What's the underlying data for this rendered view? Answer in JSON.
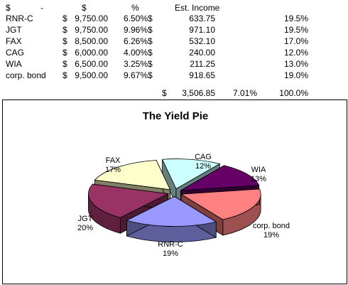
{
  "table": {
    "header": {
      "name": "$",
      "dash": "-",
      "amount": "$",
      "pct": "%",
      "income": "Est. Income"
    },
    "rows": [
      {
        "name": "RNR-C",
        "cur": "$",
        "amount": "9,750.00",
        "pct": "6.50%",
        "cur2": "$",
        "income": "633.75",
        "share": "19.5%"
      },
      {
        "name": "JGT",
        "cur": "$",
        "amount": "9,750.00",
        "pct": "9.96%",
        "cur2": "$",
        "income": "971.10",
        "share": "19.5%"
      },
      {
        "name": "FAX",
        "cur": "$",
        "amount": "8,500.00",
        "pct": "6.26%",
        "cur2": "$",
        "income": "532.10",
        "share": "17.0%"
      },
      {
        "name": "CAG",
        "cur": "$",
        "amount": "6,000.00",
        "pct": "4.00%",
        "cur2": "$",
        "income": "240.00",
        "share": "12.0%"
      },
      {
        "name": "WIA",
        "cur": "$",
        "amount": "6,500.00",
        "pct": "3.25%",
        "cur2": "$",
        "income": "211.25",
        "share": "13.0%"
      },
      {
        "name": "corp. bond",
        "cur": "$",
        "amount": "9,500.00",
        "pct": "9.67%",
        "cur2": "$",
        "income": "918.65",
        "share": "19.0%"
      }
    ],
    "total": {
      "cur": "$",
      "income": "3,506.85",
      "pct": "7.01%",
      "share": "100.0%"
    }
  },
  "chart_data": {
    "type": "pie",
    "title": "The Yield Pie",
    "slices": [
      {
        "label": "CAG",
        "pct": "12%",
        "value": 12,
        "color": "#ccffff"
      },
      {
        "label": "WIA",
        "pct": "13%",
        "value": 13,
        "color": "#660066"
      },
      {
        "label": "corp. bond",
        "pct": "19%",
        "value": 19,
        "color": "#ff8080"
      },
      {
        "label": "RNR-C",
        "pct": "19%",
        "value": 19,
        "color": "#9999ff"
      },
      {
        "label": "JGT",
        "pct": "20%",
        "value": 20,
        "color": "#993366"
      },
      {
        "label": "FAX",
        "pct": "17%",
        "value": 17,
        "color": "#ffffcc"
      }
    ],
    "style": "3d-exploded"
  }
}
